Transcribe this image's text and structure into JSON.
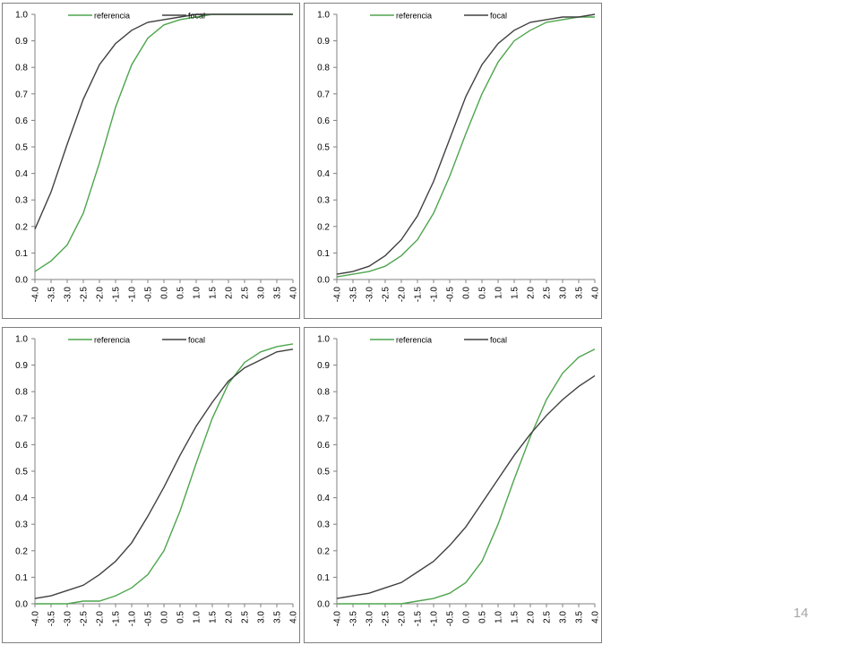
{
  "page": {
    "number": "14"
  },
  "colors": {
    "referencia": "#4ea54e",
    "focal": "#404040",
    "axis": "#808080",
    "frame": "#7f7f7f"
  },
  "chart_data": [
    {
      "type": "line",
      "title": "",
      "xlabel": "",
      "ylabel": "",
      "x": [
        -4.0,
        -3.5,
        -3.0,
        -2.5,
        -2.0,
        -1.5,
        -1.0,
        -0.5,
        0.0,
        0.5,
        1.0,
        1.5,
        2.0,
        2.5,
        3.0,
        3.5,
        4.0
      ],
      "xticks": [
        "-4.0",
        "-3.5",
        "-3.0",
        "-2.5",
        "-2.0",
        "-1.5",
        "-1.0",
        "-0.5",
        "0.0",
        "0.5",
        "1.0",
        "1.5",
        "2.0",
        "2.5",
        "3.0",
        "3.5",
        "4.0"
      ],
      "yticks": [
        "0.0",
        "0.1",
        "0.2",
        "0.3",
        "0.4",
        "0.5",
        "0.6",
        "0.7",
        "0.8",
        "0.9",
        "1.0"
      ],
      "ylim": [
        0,
        1
      ],
      "xlim": [
        -4.0,
        4.0
      ],
      "grid": false,
      "legend": "top",
      "series": [
        {
          "name": "referencia",
          "values": [
            0.03,
            0.07,
            0.13,
            0.25,
            0.44,
            0.65,
            0.81,
            0.91,
            0.96,
            0.98,
            0.99,
            1.0,
            1.0,
            1.0,
            1.0,
            1.0,
            1.0
          ]
        },
        {
          "name": "focal",
          "values": [
            0.19,
            0.33,
            0.51,
            0.68,
            0.81,
            0.89,
            0.94,
            0.97,
            0.98,
            0.99,
            1.0,
            1.0,
            1.0,
            1.0,
            1.0,
            1.0,
            1.0
          ]
        }
      ]
    },
    {
      "type": "line",
      "title": "",
      "xlabel": "",
      "ylabel": "",
      "x": [
        -4.0,
        -3.5,
        -3.0,
        -2.5,
        -2.0,
        -1.5,
        -1.0,
        -0.5,
        0.0,
        0.5,
        1.0,
        1.5,
        2.0,
        2.5,
        3.0,
        3.5,
        4.0
      ],
      "xticks": [
        "-4.0",
        "-3.5",
        "-3.0",
        "-2.5",
        "-2.0",
        "-1.5",
        "-1.0",
        "-0.5",
        "0.0",
        "0.5",
        "1.0",
        "1.5",
        "2.0",
        "2.5",
        "3.0",
        "3.5",
        "4.0"
      ],
      "yticks": [
        "0.0",
        "0.1",
        "0.2",
        "0.3",
        "0.4",
        "0.5",
        "0.6",
        "0.7",
        "0.8",
        "0.9",
        "1.0"
      ],
      "ylim": [
        0,
        1
      ],
      "xlim": [
        -4.0,
        4.0
      ],
      "grid": false,
      "legend": "top",
      "series": [
        {
          "name": "referencia",
          "values": [
            0.01,
            0.02,
            0.03,
            0.05,
            0.09,
            0.15,
            0.25,
            0.39,
            0.55,
            0.7,
            0.82,
            0.9,
            0.94,
            0.97,
            0.98,
            0.99,
            0.99
          ]
        },
        {
          "name": "focal",
          "values": [
            0.02,
            0.03,
            0.05,
            0.09,
            0.15,
            0.24,
            0.37,
            0.53,
            0.69,
            0.81,
            0.89,
            0.94,
            0.97,
            0.98,
            0.99,
            0.99,
            1.0
          ]
        }
      ]
    },
    {
      "type": "line",
      "title": "",
      "xlabel": "",
      "ylabel": "",
      "x": [
        -4.0,
        -3.5,
        -3.0,
        -2.5,
        -2.0,
        -1.5,
        -1.0,
        -0.5,
        0.0,
        0.5,
        1.0,
        1.5,
        2.0,
        2.5,
        3.0,
        3.5,
        4.0
      ],
      "xticks": [
        "-4.0",
        "-3.5",
        "-3.0",
        "-2.5",
        "-2.0",
        "-1.5",
        "-1.0",
        "-0.5",
        "0.0",
        "0.5",
        "1.0",
        "1.5",
        "2.0",
        "2.5",
        "3.0",
        "3.5",
        "4.0"
      ],
      "yticks": [
        "0.0",
        "0.1",
        "0.2",
        "0.3",
        "0.4",
        "0.5",
        "0.6",
        "0.7",
        "0.8",
        "0.9",
        "1.0"
      ],
      "ylim": [
        0,
        1
      ],
      "xlim": [
        -4.0,
        4.0
      ],
      "grid": false,
      "legend": "top",
      "series": [
        {
          "name": "referencia",
          "values": [
            0.0,
            0.0,
            0.0,
            0.01,
            0.01,
            0.03,
            0.06,
            0.11,
            0.2,
            0.35,
            0.53,
            0.7,
            0.83,
            0.91,
            0.95,
            0.97,
            0.98
          ]
        },
        {
          "name": "focal",
          "values": [
            0.02,
            0.03,
            0.05,
            0.07,
            0.11,
            0.16,
            0.23,
            0.33,
            0.44,
            0.56,
            0.67,
            0.76,
            0.84,
            0.89,
            0.92,
            0.95,
            0.96
          ]
        }
      ]
    },
    {
      "type": "line",
      "title": "",
      "xlabel": "",
      "ylabel": "",
      "x": [
        -4.0,
        -3.5,
        -3.0,
        -2.5,
        -2.0,
        -1.5,
        -1.0,
        -0.5,
        0.0,
        0.5,
        1.0,
        1.5,
        2.0,
        2.5,
        3.0,
        3.5,
        4.0
      ],
      "xticks": [
        "-4.0",
        "-3.5",
        "-3.0",
        "-2.5",
        "-2.0",
        "-1.5",
        "-1.0",
        "-0.5",
        "0.0",
        "0.5",
        "1.0",
        "1.5",
        "2.0",
        "2.5",
        "3.0",
        "3.5",
        "4.0"
      ],
      "yticks": [
        "0.0",
        "0.1",
        "0.2",
        "0.3",
        "0.4",
        "0.5",
        "0.6",
        "0.7",
        "0.8",
        "0.9",
        "1.0"
      ],
      "ylim": [
        0,
        1
      ],
      "xlim": [
        -4.0,
        4.0
      ],
      "grid": false,
      "legend": "top",
      "series": [
        {
          "name": "referencia",
          "values": [
            0.0,
            0.0,
            0.0,
            0.0,
            0.0,
            0.01,
            0.02,
            0.04,
            0.08,
            0.16,
            0.3,
            0.47,
            0.63,
            0.77,
            0.87,
            0.93,
            0.96
          ]
        },
        {
          "name": "focal",
          "values": [
            0.02,
            0.03,
            0.04,
            0.06,
            0.08,
            0.12,
            0.16,
            0.22,
            0.29,
            0.38,
            0.47,
            0.56,
            0.64,
            0.71,
            0.77,
            0.82,
            0.86
          ]
        }
      ]
    }
  ]
}
